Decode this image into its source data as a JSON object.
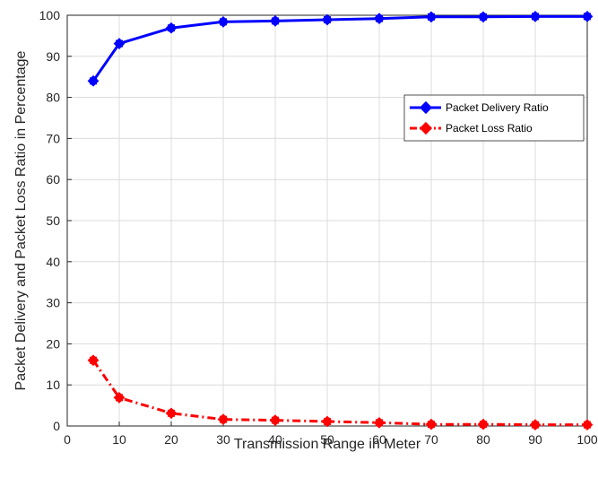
{
  "chart_data": {
    "type": "line",
    "xlabel": "Transmission Range in Meter",
    "ylabel": "Packet Delivery and Packet Loss Ratio in Percentage",
    "xlim": [
      0,
      100
    ],
    "ylim": [
      0,
      100
    ],
    "xticks": [
      0,
      10,
      20,
      30,
      40,
      50,
      60,
      70,
      80,
      90,
      100
    ],
    "yticks": [
      0,
      10,
      20,
      30,
      40,
      50,
      60,
      70,
      80,
      90,
      100
    ],
    "grid": true,
    "legend_position": "right",
    "x": [
      5,
      10,
      20,
      30,
      40,
      50,
      60,
      70,
      80,
      90,
      100
    ],
    "series": [
      {
        "name": "Packet Delivery Ratio",
        "values": [
          84,
          93.1,
          96.9,
          98.4,
          98.6,
          98.9,
          99.2,
          99.6,
          99.6,
          99.7,
          99.7
        ],
        "color": "#0000ff",
        "style": "solid"
      },
      {
        "name": "Packet Loss Ratio",
        "values": [
          16,
          6.9,
          3.1,
          1.6,
          1.4,
          1.1,
          0.8,
          0.4,
          0.4,
          0.3,
          0.3
        ],
        "color": "#ff0000",
        "style": "dash-dot"
      }
    ]
  }
}
